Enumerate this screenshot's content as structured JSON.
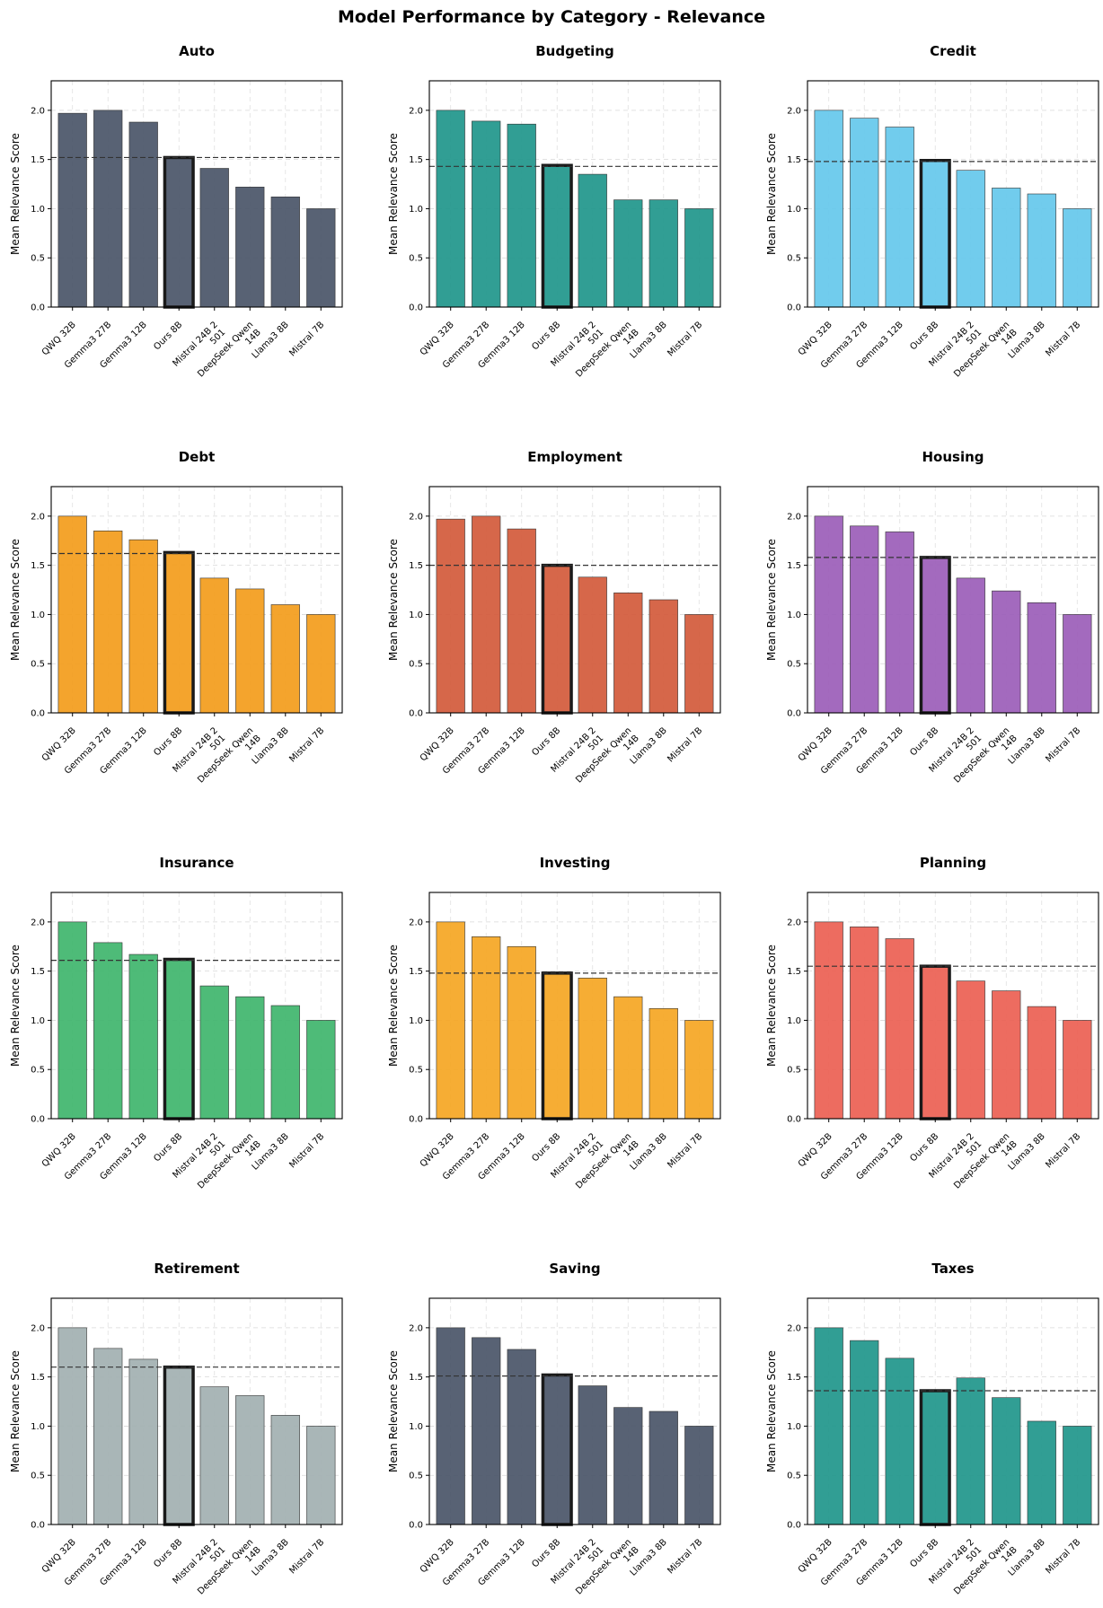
{
  "figure_title": "Model Performance by Category - Relevance",
  "chart_data": [
    {
      "type": "bar",
      "title": "Auto",
      "ylabel": "Mean Relevance Score",
      "ylim": [
        0,
        2.3
      ],
      "yticks": [
        0.0,
        0.5,
        1.0,
        1.5,
        2.0
      ],
      "color": "#4a5568",
      "categories": [
        "QWQ 32B",
        "Gemma3 27B",
        "Gemma3 12B",
        "Ours 8B",
        "Mistral 24B 2 501",
        "DeepSeek Qwen 14B",
        "Llama3 8B",
        "Mistral 7B"
      ],
      "values": [
        1.97,
        2.0,
        1.88,
        1.52,
        1.41,
        1.22,
        1.12,
        1.0
      ],
      "reference_line": 1.52,
      "highlight": "Ours 8B"
    },
    {
      "type": "bar",
      "title": "Budgeting",
      "ylabel": "Mean Relevance Score",
      "ylim": [
        0,
        2.3
      ],
      "yticks": [
        0.0,
        0.5,
        1.0,
        1.5,
        2.0
      ],
      "color": "#1f968b",
      "categories": [
        "QWQ 32B",
        "Gemma3 27B",
        "Gemma3 12B",
        "Ours 8B",
        "Mistral 24B 2 501",
        "DeepSeek Qwen 14B",
        "Llama3 8B",
        "Mistral 7B"
      ],
      "values": [
        2.0,
        1.89,
        1.86,
        1.44,
        1.35,
        1.09,
        1.09,
        1.0
      ],
      "reference_line": 1.43,
      "highlight": "Ours 8B"
    },
    {
      "type": "bar",
      "title": "Credit",
      "ylabel": "Mean Relevance Score",
      "ylim": [
        0,
        2.3
      ],
      "yticks": [
        0.0,
        0.5,
        1.0,
        1.5,
        2.0
      ],
      "color": "#65c8ec",
      "categories": [
        "QWQ 32B",
        "Gemma3 27B",
        "Gemma3 12B",
        "Ours 8B",
        "Mistral 24B 2 501",
        "DeepSeek Qwen 14B",
        "Llama3 8B",
        "Mistral 7B"
      ],
      "values": [
        2.0,
        1.92,
        1.83,
        1.49,
        1.39,
        1.21,
        1.15,
        1.0
      ],
      "reference_line": 1.48,
      "highlight": "Ours 8B"
    },
    {
      "type": "bar",
      "title": "Debt",
      "ylabel": "Mean Relevance Score",
      "ylim": [
        0,
        2.3
      ],
      "yticks": [
        0.0,
        0.5,
        1.0,
        1.5,
        2.0
      ],
      "color": "#f39c1b",
      "categories": [
        "QWQ 32B",
        "Gemma3 27B",
        "Gemma3 12B",
        "Ours 8B",
        "Mistral 24B 2 501",
        "DeepSeek Qwen 14B",
        "Llama3 8B",
        "Mistral 7B"
      ],
      "values": [
        2.0,
        1.85,
        1.76,
        1.63,
        1.37,
        1.26,
        1.1,
        1.0
      ],
      "reference_line": 1.62,
      "highlight": "Ours 8B"
    },
    {
      "type": "bar",
      "title": "Employment",
      "ylabel": "Mean Relevance Score",
      "ylim": [
        0,
        2.3
      ],
      "yticks": [
        0.0,
        0.5,
        1.0,
        1.5,
        2.0
      ],
      "color": "#d35a3b",
      "categories": [
        "QWQ 32B",
        "Gemma3 27B",
        "Gemma3 12B",
        "Ours 8B",
        "Mistral 24B 2 501",
        "DeepSeek Qwen 14B",
        "Llama3 8B",
        "Mistral 7B"
      ],
      "values": [
        1.97,
        2.0,
        1.87,
        1.5,
        1.38,
        1.22,
        1.15,
        1.0
      ],
      "reference_line": 1.5,
      "highlight": "Ours 8B"
    },
    {
      "type": "bar",
      "title": "Housing",
      "ylabel": "Mean Relevance Score",
      "ylim": [
        0,
        2.3
      ],
      "yticks": [
        0.0,
        0.5,
        1.0,
        1.5,
        2.0
      ],
      "color": "#9b5db8",
      "categories": [
        "QWQ 32B",
        "Gemma3 27B",
        "Gemma3 12B",
        "Ours 8B",
        "Mistral 24B 2 501",
        "DeepSeek Qwen 14B",
        "Llama3 8B",
        "Mistral 7B"
      ],
      "values": [
        2.0,
        1.9,
        1.84,
        1.58,
        1.37,
        1.24,
        1.12,
        1.0
      ],
      "reference_line": 1.58,
      "highlight": "Ours 8B"
    },
    {
      "type": "bar",
      "title": "Insurance",
      "ylabel": "Mean Relevance Score",
      "ylim": [
        0,
        2.3
      ],
      "yticks": [
        0.0,
        0.5,
        1.0,
        1.5,
        2.0
      ],
      "color": "#3fb56d",
      "categories": [
        "QWQ 32B",
        "Gemma3 27B",
        "Gemma3 12B",
        "Ours 8B",
        "Mistral 24B 2 501",
        "DeepSeek Qwen 14B",
        "Llama3 8B",
        "Mistral 7B"
      ],
      "values": [
        2.0,
        1.79,
        1.67,
        1.62,
        1.35,
        1.24,
        1.15,
        1.0
      ],
      "reference_line": 1.61,
      "highlight": "Ours 8B"
    },
    {
      "type": "bar",
      "title": "Investing",
      "ylabel": "Mean Relevance Score",
      "ylim": [
        0,
        2.3
      ],
      "yticks": [
        0.0,
        0.5,
        1.0,
        1.5,
        2.0
      ],
      "color": "#f5a623",
      "categories": [
        "QWQ 32B",
        "Gemma3 27B",
        "Gemma3 12B",
        "Ours 8B",
        "Mistral 24B 2 501",
        "DeepSeek Qwen 14B",
        "Llama3 8B",
        "Mistral 7B"
      ],
      "values": [
        2.0,
        1.85,
        1.75,
        1.48,
        1.43,
        1.24,
        1.12,
        1.0
      ],
      "reference_line": 1.48,
      "highlight": "Ours 8B"
    },
    {
      "type": "bar",
      "title": "Planning",
      "ylabel": "Mean Relevance Score",
      "ylim": [
        0,
        2.3
      ],
      "yticks": [
        0.0,
        0.5,
        1.0,
        1.5,
        2.0
      ],
      "color": "#eb5f52",
      "categories": [
        "QWQ 32B",
        "Gemma3 27B",
        "Gemma3 12B",
        "Ours 8B",
        "Mistral 24B 2 501",
        "DeepSeek Qwen 14B",
        "Llama3 8B",
        "Mistral 7B"
      ],
      "values": [
        2.0,
        1.95,
        1.83,
        1.55,
        1.4,
        1.3,
        1.14,
        1.0
      ],
      "reference_line": 1.55,
      "highlight": "Ours 8B"
    },
    {
      "type": "bar",
      "title": "Retirement",
      "ylabel": "Mean Relevance Score",
      "ylim": [
        0,
        2.3
      ],
      "yticks": [
        0.0,
        0.5,
        1.0,
        1.5,
        2.0
      ],
      "color": "#a2b0b1",
      "categories": [
        "QWQ 32B",
        "Gemma3 27B",
        "Gemma3 12B",
        "Ours 8B",
        "Mistral 24B 2 501",
        "DeepSeek Qwen 14B",
        "Llama3 8B",
        "Mistral 7B"
      ],
      "values": [
        2.0,
        1.79,
        1.68,
        1.6,
        1.4,
        1.31,
        1.11,
        1.0
      ],
      "reference_line": 1.6,
      "highlight": "Ours 8B"
    },
    {
      "type": "bar",
      "title": "Saving",
      "ylabel": "Mean Relevance Score",
      "ylim": [
        0,
        2.3
      ],
      "yticks": [
        0.0,
        0.5,
        1.0,
        1.5,
        2.0
      ],
      "color": "#4a5568",
      "categories": [
        "QWQ 32B",
        "Gemma3 27B",
        "Gemma3 12B",
        "Ours 8B",
        "Mistral 24B 2 501",
        "DeepSeek Qwen 14B",
        "Llama3 8B",
        "Mistral 7B"
      ],
      "values": [
        2.0,
        1.9,
        1.78,
        1.52,
        1.41,
        1.19,
        1.15,
        1.0
      ],
      "reference_line": 1.51,
      "highlight": "Ours 8B"
    },
    {
      "type": "bar",
      "title": "Taxes",
      "ylabel": "Mean Relevance Score",
      "ylim": [
        0,
        2.3
      ],
      "yticks": [
        0.0,
        0.5,
        1.0,
        1.5,
        2.0
      ],
      "color": "#1f968b",
      "categories": [
        "QWQ 32B",
        "Gemma3 27B",
        "Gemma3 12B",
        "Ours 8B",
        "Mistral 24B 2 501",
        "DeepSeek Qwen 14B",
        "Llama3 8B",
        "Mistral 7B"
      ],
      "values": [
        2.0,
        1.87,
        1.69,
        1.36,
        1.49,
        1.29,
        1.05,
        1.0
      ],
      "reference_line": 1.36,
      "highlight": "Ours 8B"
    }
  ]
}
